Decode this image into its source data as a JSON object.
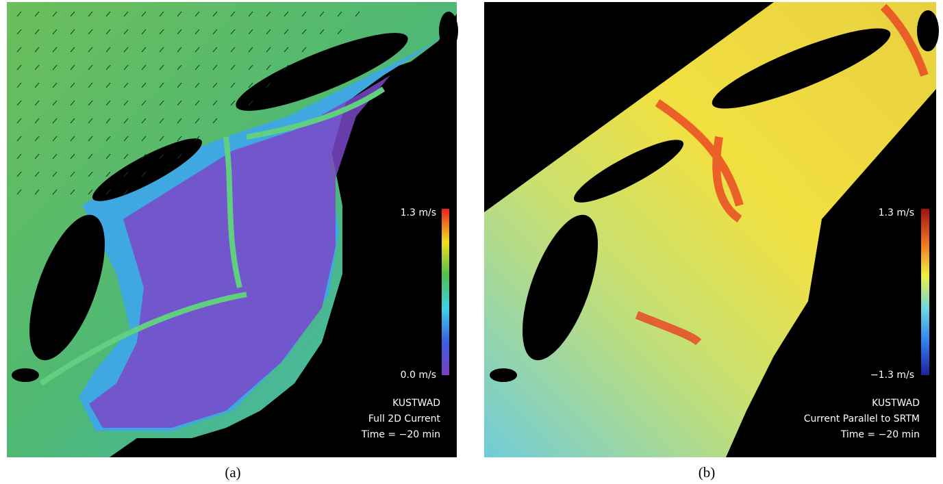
{
  "panels": [
    {
      "label": "(a)",
      "colorbar": {
        "max_label": "1.3 m/s",
        "min_label": "0.0 m/s"
      },
      "caption": [
        "KUSTWAD",
        "Full 2D Current",
        "Time = −20 min"
      ]
    },
    {
      "label": "(b)",
      "colorbar": {
        "max_label": "1.3 m/s",
        "min_label": "−1.3 m/s"
      },
      "caption": [
        "KUSTWAD",
        "Current Parallel to SRTM",
        "Time = −20 min"
      ]
    }
  ]
}
